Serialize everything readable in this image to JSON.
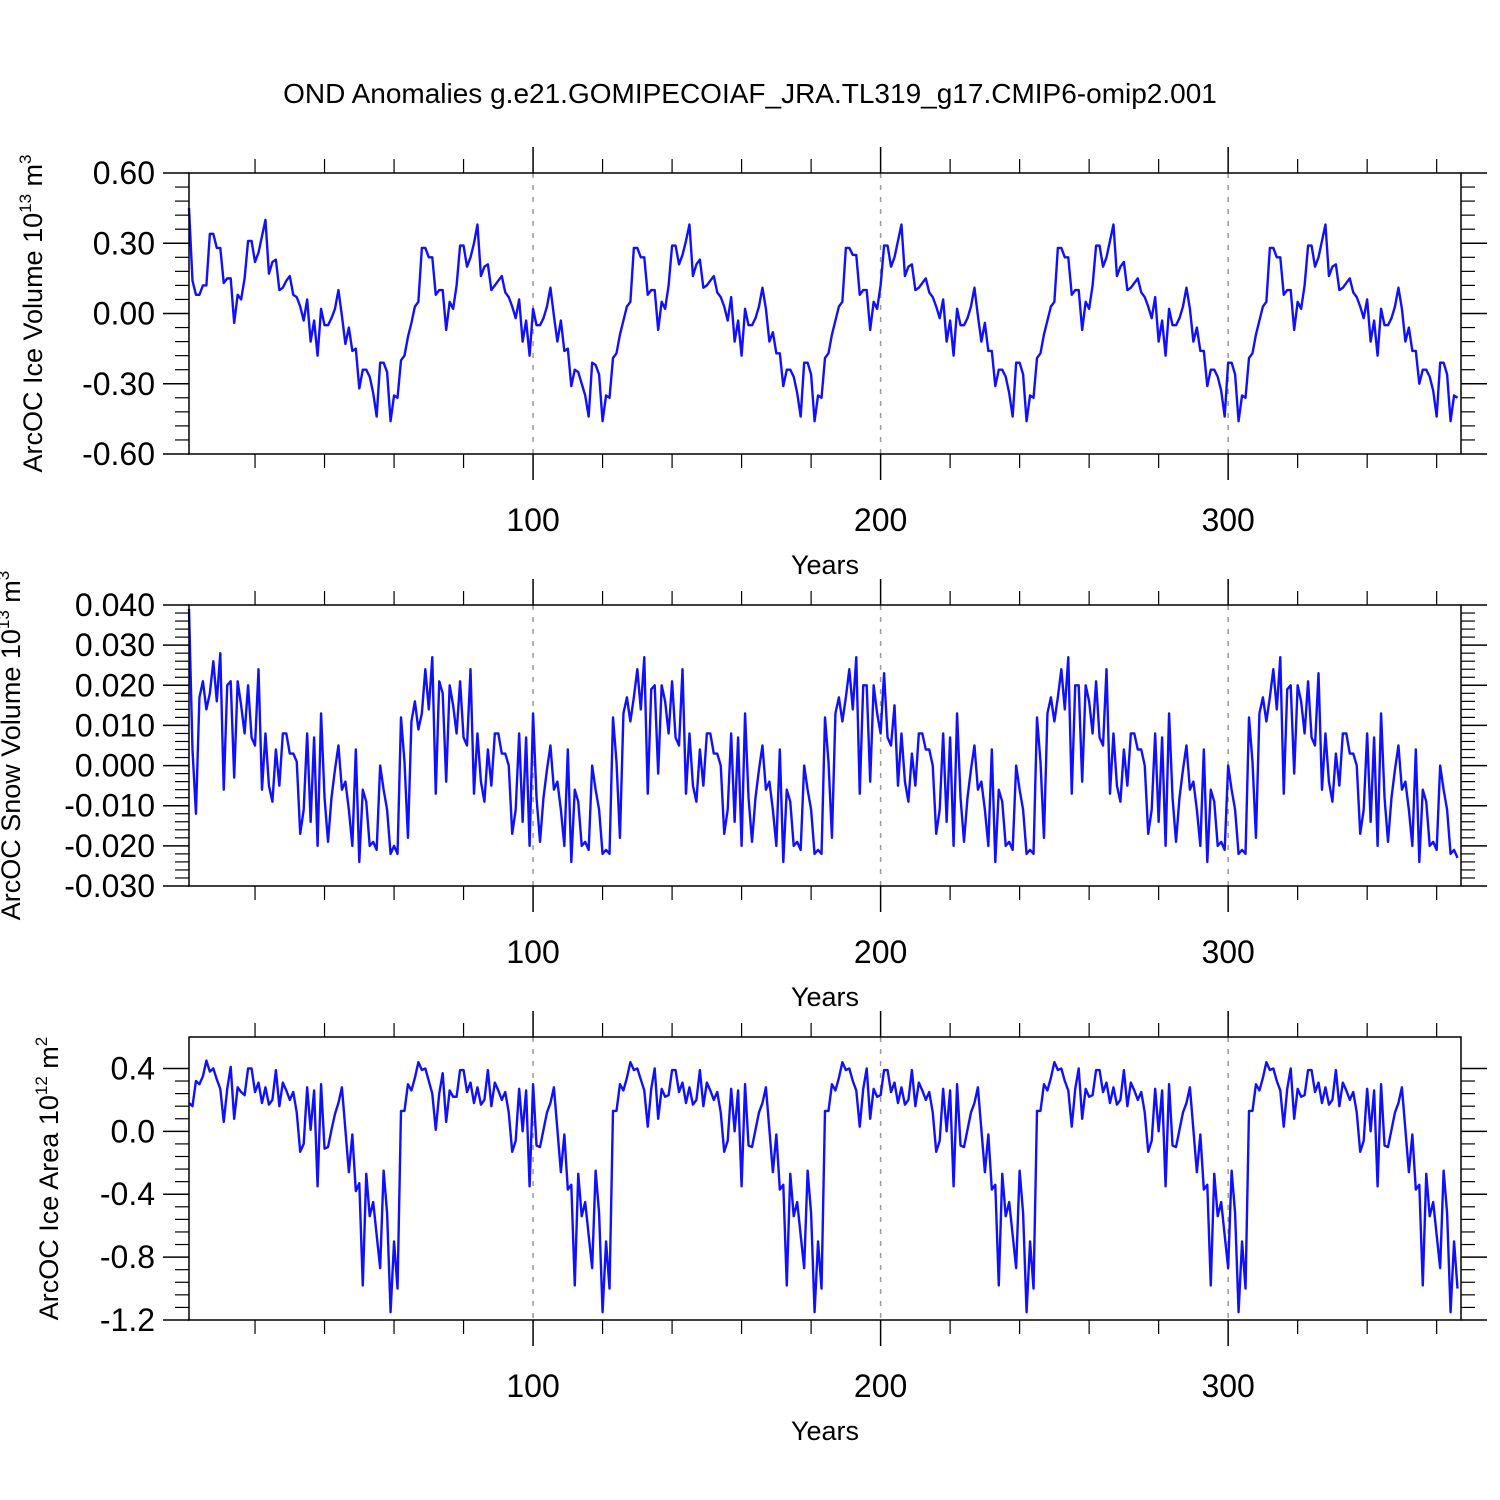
{
  "title": "OND Anomalies g.e21.GOMIPECOIAF_JRA.TL319_g17.CMIP6-omip2.001",
  "colors": {
    "line": "#1010ff",
    "axis": "#000000",
    "grid": "#999999"
  },
  "chart_data": [
    {
      "type": "line",
      "name": "ice-volume",
      "ylabel": "ArcOC Ice Volume 10",
      "ylabel_sup": "13",
      "ylabel_unit": " m",
      "ylabel_unit_sup": "3",
      "xlabel": "Years",
      "xlim": [
        1,
        367
      ],
      "ylim": [
        -0.6,
        0.6
      ],
      "yticks": [
        -0.6,
        -0.3,
        0.0,
        0.3,
        0.6
      ],
      "ytick_labels": [
        "-0.60",
        "-0.30",
        "0.00",
        "0.30",
        "0.60"
      ],
      "xticks": [
        100,
        200,
        300
      ],
      "xtick_labels": [
        "100",
        "200",
        "300"
      ],
      "grid_x": [
        100,
        200,
        300
      ],
      "values": [
        0.45,
        0.14,
        0.08,
        0.08,
        0.12,
        0.12,
        0.34,
        0.34,
        0.28,
        0.28,
        0.13,
        0.15,
        0.15,
        -0.04,
        0.08,
        0.06,
        0.15,
        0.31,
        0.31,
        0.22,
        0.26,
        0.33,
        0.4,
        0.17,
        0.22,
        0.23,
        0.1,
        0.11,
        0.14,
        0.16,
        0.08,
        0.07,
        0.03,
        -0.03,
        0.06,
        -0.12,
        -0.03,
        -0.18,
        0.02,
        -0.05,
        -0.05,
        -0.02,
        0.02,
        0.1,
        -0.01,
        -0.13,
        -0.06,
        -0.16,
        -0.15,
        -0.32,
        -0.24,
        -0.24,
        -0.27,
        -0.34,
        -0.44,
        -0.21,
        -0.21,
        -0.25,
        -0.46,
        -0.35,
        -0.36,
        -0.2,
        -0.18,
        -0.1,
        -0.04,
        0.03,
        0.05,
        0.28,
        0.28,
        0.24,
        0.24,
        0.08,
        0.1,
        0.1,
        -0.07,
        0.05,
        0.02,
        0.12,
        0.29,
        0.29,
        0.2,
        0.24,
        0.3,
        0.38,
        0.16,
        0.2,
        0.21,
        0.1,
        0.12,
        0.14,
        0.16,
        0.09,
        0.07,
        0.03,
        -0.02,
        0.06,
        -0.12,
        -0.03,
        -0.18,
        0.02,
        -0.05,
        -0.05,
        -0.02,
        0.03,
        0.11,
        -0.01,
        -0.12,
        -0.03,
        -0.16,
        -0.15,
        -0.31,
        -0.24,
        -0.25,
        -0.3,
        -0.35,
        -0.44,
        -0.21,
        -0.22,
        -0.26,
        -0.46,
        -0.35,
        -0.36,
        -0.19,
        -0.17,
        -0.09,
        -0.03,
        0.03,
        0.05,
        0.28,
        0.28,
        0.24,
        0.24,
        0.08,
        0.1,
        0.1,
        -0.07,
        0.05,
        0.02,
        0.12,
        0.29,
        0.29,
        0.21,
        0.25,
        0.31,
        0.38,
        0.16,
        0.21,
        0.23,
        0.11,
        0.12,
        0.14,
        0.16,
        0.09,
        0.07,
        0.03,
        -0.03,
        0.07,
        -0.12,
        -0.03,
        -0.18,
        0.02,
        -0.05,
        -0.05,
        -0.02,
        0.03,
        0.11,
        0.02,
        -0.12,
        -0.08,
        -0.17,
        -0.17,
        -0.31,
        -0.24,
        -0.24,
        -0.27,
        -0.34,
        -0.44,
        -0.21,
        -0.21,
        -0.26,
        -0.46,
        -0.35,
        -0.36,
        -0.19,
        -0.17,
        -0.09,
        -0.03,
        0.03,
        0.05,
        0.28,
        0.28,
        0.25,
        0.25,
        0.08,
        0.1,
        0.1,
        -0.07,
        0.05,
        0.02,
        0.12,
        0.29,
        0.29,
        0.2,
        0.24,
        0.31,
        0.38,
        0.16,
        0.2,
        0.21,
        0.1,
        0.11,
        0.13,
        0.15,
        0.09,
        0.07,
        0.03,
        -0.02,
        0.06,
        -0.12,
        -0.03,
        -0.18,
        0.02,
        -0.05,
        -0.05,
        -0.02,
        0.03,
        0.11,
        -0.01,
        -0.12,
        -0.04,
        -0.16,
        -0.16,
        -0.31,
        -0.24,
        -0.24,
        -0.27,
        -0.34,
        -0.44,
        -0.21,
        -0.21,
        -0.26,
        -0.46,
        -0.35,
        -0.36,
        -0.19,
        -0.17,
        -0.09,
        -0.03,
        0.03,
        0.05,
        0.28,
        0.28,
        0.24,
        0.24,
        0.08,
        0.1,
        0.1,
        -0.07,
        0.05,
        0.02,
        0.12,
        0.29,
        0.29,
        0.2,
        0.24,
        0.31,
        0.38,
        0.16,
        0.2,
        0.22,
        0.1,
        0.11,
        0.13,
        0.15,
        0.09,
        0.07,
        0.03,
        -0.02,
        0.07,
        -0.12,
        -0.03,
        -0.18,
        0.02,
        -0.05,
        -0.05,
        -0.02,
        0.03,
        0.11,
        0.02,
        -0.12,
        -0.06,
        -0.16,
        -0.16,
        -0.31,
        -0.24,
        -0.24,
        -0.27,
        -0.33,
        -0.44,
        -0.21,
        -0.21,
        -0.26,
        -0.46,
        -0.35,
        -0.36,
        -0.19,
        -0.17,
        -0.09,
        -0.03,
        0.03,
        0.05,
        0.28,
        0.28,
        0.24,
        0.24,
        0.08,
        0.1,
        0.1,
        -0.07,
        0.05,
        0.02,
        0.12,
        0.29,
        0.29,
        0.2,
        0.24,
        0.31,
        0.38,
        0.16,
        0.2,
        0.21,
        0.1,
        0.11,
        0.13,
        0.15,
        0.09,
        0.07,
        0.03,
        -0.02,
        0.06,
        -0.12,
        -0.03,
        -0.18,
        0.02,
        -0.05,
        -0.05,
        -0.02,
        0.03,
        0.11,
        0.02,
        -0.12,
        -0.06,
        -0.16,
        -0.16,
        -0.3,
        -0.24,
        -0.24,
        -0.27,
        -0.33,
        -0.44,
        -0.21,
        -0.21,
        -0.26,
        -0.46,
        -0.35,
        -0.36
      ]
    },
    {
      "type": "line",
      "name": "snow-volume",
      "ylabel": "ArcOC Snow Volume 10",
      "ylabel_sup": "13",
      "ylabel_unit": " m",
      "ylabel_unit_sup": "3",
      "xlabel": "Years",
      "xlim": [
        1,
        367
      ],
      "ylim": [
        -0.03,
        0.04
      ],
      "yticks": [
        -0.03,
        -0.02,
        -0.01,
        0.0,
        0.01,
        0.02,
        0.03,
        0.04
      ],
      "ytick_labels": [
        "-0.030",
        "-0.020",
        "-0.010",
        "0.000",
        "0.010",
        "0.020",
        "0.030",
        "0.040"
      ],
      "xticks": [
        100,
        200,
        300
      ],
      "xtick_labels": [
        "100",
        "200",
        "300"
      ],
      "grid_x": [
        100,
        200,
        300
      ],
      "values": [
        0.039,
        0.004,
        -0.012,
        0.017,
        0.021,
        0.014,
        0.018,
        0.026,
        0.016,
        0.028,
        -0.006,
        0.02,
        0.021,
        -0.003,
        0.021,
        0.015,
        0.008,
        0.02,
        0.007,
        0.005,
        0.024,
        -0.006,
        0.008,
        -0.005,
        -0.009,
        0.004,
        -0.005,
        0.008,
        0.008,
        0.003,
        0.003,
        0.001,
        -0.017,
        -0.011,
        0.008,
        -0.014,
        0.007,
        -0.02,
        0.013,
        -0.008,
        -0.019,
        -0.008,
        -0.001,
        0.005,
        -0.006,
        -0.004,
        -0.011,
        -0.02,
        0.004,
        -0.024,
        -0.006,
        -0.009,
        -0.02,
        -0.019,
        -0.021,
        0.0,
        -0.006,
        -0.011,
        -0.022,
        -0.02,
        -0.022,
        0.012,
        0.001,
        -0.018,
        0.011,
        0.016,
        0.009,
        0.013,
        0.024,
        0.014,
        0.027,
        -0.007,
        0.021,
        0.018,
        -0.004,
        0.02,
        0.015,
        0.008,
        0.021,
        0.007,
        0.005,
        0.024,
        -0.007,
        0.008,
        -0.004,
        -0.009,
        0.004,
        -0.005,
        0.008,
        0.008,
        0.003,
        0.003,
        0.0,
        -0.017,
        -0.011,
        0.008,
        -0.014,
        0.007,
        -0.02,
        0.013,
        -0.008,
        -0.019,
        -0.008,
        -0.001,
        0.005,
        -0.006,
        -0.004,
        -0.011,
        -0.02,
        0.004,
        -0.024,
        -0.006,
        -0.009,
        -0.02,
        -0.019,
        -0.021,
        0.0,
        -0.006,
        -0.011,
        -0.022,
        -0.021,
        -0.022,
        0.012,
        0.001,
        -0.018,
        0.013,
        0.017,
        0.011,
        0.017,
        0.024,
        0.014,
        0.027,
        -0.007,
        0.019,
        0.02,
        -0.002,
        0.02,
        0.016,
        0.008,
        0.021,
        0.007,
        0.005,
        0.024,
        -0.007,
        0.008,
        -0.005,
        -0.009,
        0.004,
        -0.005,
        0.008,
        0.008,
        0.003,
        0.003,
        0.0,
        -0.017,
        -0.011,
        0.008,
        -0.014,
        0.007,
        -0.02,
        0.013,
        -0.008,
        -0.019,
        -0.008,
        -0.001,
        0.005,
        -0.006,
        -0.004,
        -0.011,
        -0.02,
        0.004,
        -0.024,
        -0.006,
        -0.009,
        -0.02,
        -0.019,
        -0.021,
        0.0,
        -0.006,
        -0.011,
        -0.022,
        -0.021,
        -0.022,
        0.012,
        0.001,
        -0.018,
        0.013,
        0.017,
        0.011,
        0.017,
        0.024,
        0.014,
        0.027,
        -0.007,
        0.02,
        0.02,
        -0.004,
        0.02,
        0.013,
        0.008,
        0.023,
        0.007,
        0.005,
        0.015,
        -0.005,
        0.008,
        -0.004,
        -0.009,
        0.003,
        -0.005,
        0.008,
        0.008,
        0.004,
        0.004,
        0.0,
        -0.017,
        -0.011,
        0.008,
        -0.014,
        0.007,
        -0.02,
        0.013,
        -0.008,
        -0.019,
        -0.008,
        -0.001,
        0.005,
        -0.006,
        -0.004,
        -0.011,
        -0.02,
        0.004,
        -0.024,
        -0.006,
        -0.009,
        -0.02,
        -0.019,
        -0.021,
        0.0,
        -0.006,
        -0.011,
        -0.022,
        -0.021,
        -0.022,
        0.012,
        0.001,
        -0.018,
        0.013,
        0.017,
        0.011,
        0.017,
        0.024,
        0.014,
        0.027,
        -0.007,
        0.02,
        0.02,
        -0.004,
        0.02,
        0.016,
        0.008,
        0.021,
        0.007,
        0.005,
        0.024,
        -0.007,
        0.008,
        -0.005,
        -0.009,
        0.004,
        -0.005,
        0.008,
        0.008,
        0.004,
        0.004,
        0.0,
        -0.017,
        -0.011,
        0.008,
        -0.014,
        0.007,
        -0.02,
        0.013,
        -0.008,
        -0.019,
        -0.008,
        -0.001,
        0.005,
        -0.006,
        -0.004,
        -0.011,
        -0.02,
        0.004,
        -0.024,
        -0.006,
        -0.009,
        -0.02,
        -0.019,
        -0.021,
        0.0,
        -0.006,
        -0.011,
        -0.022,
        -0.021,
        -0.022,
        0.012,
        0.001,
        -0.018,
        0.013,
        0.017,
        0.011,
        0.017,
        0.024,
        0.014,
        0.027,
        -0.007,
        0.019,
        0.02,
        -0.002,
        0.02,
        0.016,
        0.008,
        0.021,
        0.007,
        0.005,
        0.023,
        -0.006,
        0.008,
        -0.004,
        -0.009,
        0.003,
        -0.005,
        0.008,
        0.008,
        0.003,
        0.003,
        0.0,
        -0.017,
        -0.011,
        0.008,
        -0.014,
        0.007,
        -0.02,
        0.013,
        -0.008,
        -0.019,
        -0.008,
        -0.001,
        0.005,
        -0.006,
        -0.004,
        -0.011,
        -0.02,
        0.004,
        -0.024,
        -0.006,
        -0.009,
        -0.02,
        -0.019,
        -0.021,
        0.0,
        -0.006,
        -0.011,
        -0.022,
        -0.021,
        -0.023
      ]
    },
    {
      "type": "line",
      "name": "ice-area",
      "ylabel": "ArcOC Ice Area 10",
      "ylabel_sup": "12",
      "ylabel_unit": " m",
      "ylabel_unit_sup": "2",
      "xlabel": "Years",
      "xlim": [
        1,
        367
      ],
      "ylim": [
        -1.2,
        0.6
      ],
      "yticks": [
        -1.2,
        -0.8,
        -0.4,
        0.0,
        0.4
      ],
      "ytick_labels": [
        "-1.2",
        "-0.8",
        "-0.4",
        "0.0",
        "0.4"
      ],
      "xticks": [
        100,
        200,
        300
      ],
      "xtick_labels": [
        "100",
        "200",
        "300"
      ],
      "grid_x": [
        100,
        200,
        300
      ],
      "values": [
        0.18,
        0.16,
        0.32,
        0.3,
        0.35,
        0.45,
        0.38,
        0.4,
        0.33,
        0.27,
        0.06,
        0.27,
        0.41,
        0.08,
        0.28,
        0.25,
        0.23,
        0.4,
        0.4,
        0.25,
        0.31,
        0.18,
        0.28,
        0.17,
        0.2,
        0.39,
        0.16,
        0.31,
        0.26,
        0.2,
        0.25,
        0.12,
        -0.13,
        -0.08,
        0.28,
        0.01,
        0.26,
        -0.35,
        0.3,
        -0.11,
        -0.1,
        0.01,
        0.11,
        0.18,
        0.28,
        0.01,
        -0.26,
        -0.02,
        -0.38,
        -0.33,
        -0.98,
        -0.27,
        -0.54,
        -0.45,
        -0.66,
        -0.87,
        -0.25,
        -0.52,
        -1.15,
        -0.7,
        -1.0,
        0.13,
        0.13,
        0.3,
        0.26,
        0.34,
        0.44,
        0.39,
        0.4,
        0.32,
        0.24,
        0.01,
        0.24,
        0.37,
        0.06,
        0.26,
        0.22,
        0.22,
        0.39,
        0.39,
        0.25,
        0.31,
        0.18,
        0.28,
        0.17,
        0.2,
        0.39,
        0.16,
        0.31,
        0.26,
        0.2,
        0.25,
        0.12,
        -0.13,
        -0.06,
        0.27,
        0.0,
        0.26,
        -0.35,
        0.3,
        -0.09,
        -0.1,
        0.01,
        0.12,
        0.18,
        0.28,
        0.01,
        -0.26,
        -0.02,
        -0.37,
        -0.34,
        -0.98,
        -0.27,
        -0.54,
        -0.45,
        -0.66,
        -0.87,
        -0.25,
        -0.52,
        -1.15,
        -0.7,
        -1.0,
        0.13,
        0.13,
        0.3,
        0.26,
        0.34,
        0.44,
        0.39,
        0.4,
        0.33,
        0.26,
        0.03,
        0.27,
        0.4,
        0.08,
        0.27,
        0.22,
        0.23,
        0.39,
        0.39,
        0.25,
        0.31,
        0.18,
        0.28,
        0.17,
        0.2,
        0.39,
        0.16,
        0.31,
        0.26,
        0.2,
        0.25,
        0.12,
        -0.13,
        -0.06,
        0.27,
        0.0,
        0.26,
        -0.35,
        0.3,
        -0.09,
        -0.1,
        0.01,
        0.12,
        0.18,
        0.28,
        0.01,
        -0.26,
        -0.02,
        -0.37,
        -0.34,
        -0.98,
        -0.27,
        -0.54,
        -0.45,
        -0.66,
        -0.87,
        -0.25,
        -0.52,
        -1.15,
        -0.7,
        -1.0,
        0.13,
        0.13,
        0.3,
        0.26,
        0.34,
        0.44,
        0.39,
        0.4,
        0.32,
        0.26,
        0.03,
        0.27,
        0.4,
        0.08,
        0.27,
        0.22,
        0.23,
        0.39,
        0.39,
        0.25,
        0.31,
        0.18,
        0.28,
        0.17,
        0.2,
        0.39,
        0.16,
        0.31,
        0.26,
        0.2,
        0.25,
        0.12,
        -0.13,
        -0.06,
        0.27,
        0.0,
        0.26,
        -0.35,
        0.3,
        -0.09,
        -0.1,
        0.01,
        0.12,
        0.18,
        0.28,
        0.01,
        -0.26,
        -0.02,
        -0.37,
        -0.34,
        -0.98,
        -0.27,
        -0.54,
        -0.45,
        -0.66,
        -0.87,
        -0.25,
        -0.52,
        -1.15,
        -0.7,
        -1.0,
        0.13,
        0.13,
        0.3,
        0.26,
        0.34,
        0.44,
        0.39,
        0.4,
        0.32,
        0.26,
        0.03,
        0.27,
        0.4,
        0.08,
        0.27,
        0.22,
        0.23,
        0.39,
        0.39,
        0.25,
        0.31,
        0.18,
        0.28,
        0.17,
        0.2,
        0.39,
        0.16,
        0.31,
        0.26,
        0.2,
        0.25,
        0.12,
        -0.13,
        -0.06,
        0.27,
        0.0,
        0.26,
        -0.35,
        0.3,
        -0.09,
        -0.1,
        0.01,
        0.12,
        0.18,
        0.28,
        0.01,
        -0.26,
        -0.02,
        -0.37,
        -0.34,
        -0.98,
        -0.27,
        -0.54,
        -0.45,
        -0.66,
        -0.87,
        -0.25,
        -0.52,
        -1.15,
        -0.7,
        -1.0,
        0.13,
        0.13,
        0.3,
        0.26,
        0.34,
        0.44,
        0.39,
        0.4,
        0.32,
        0.26,
        0.03,
        0.27,
        0.4,
        0.08,
        0.27,
        0.22,
        0.23,
        0.39,
        0.39,
        0.25,
        0.31,
        0.18,
        0.28,
        0.17,
        0.2,
        0.39,
        0.16,
        0.31,
        0.26,
        0.2,
        0.25,
        0.12,
        -0.13,
        -0.06,
        0.27,
        0.0,
        0.26,
        -0.35,
        0.3,
        -0.09,
        -0.1,
        0.01,
        0.12,
        0.18,
        0.28,
        0.01,
        -0.26,
        -0.02,
        -0.37,
        -0.34,
        -0.98,
        -0.27,
        -0.54,
        -0.45,
        -0.66,
        -0.87,
        -0.25,
        -0.52,
        -1.15,
        -0.7,
        -1.0
      ]
    }
  ]
}
